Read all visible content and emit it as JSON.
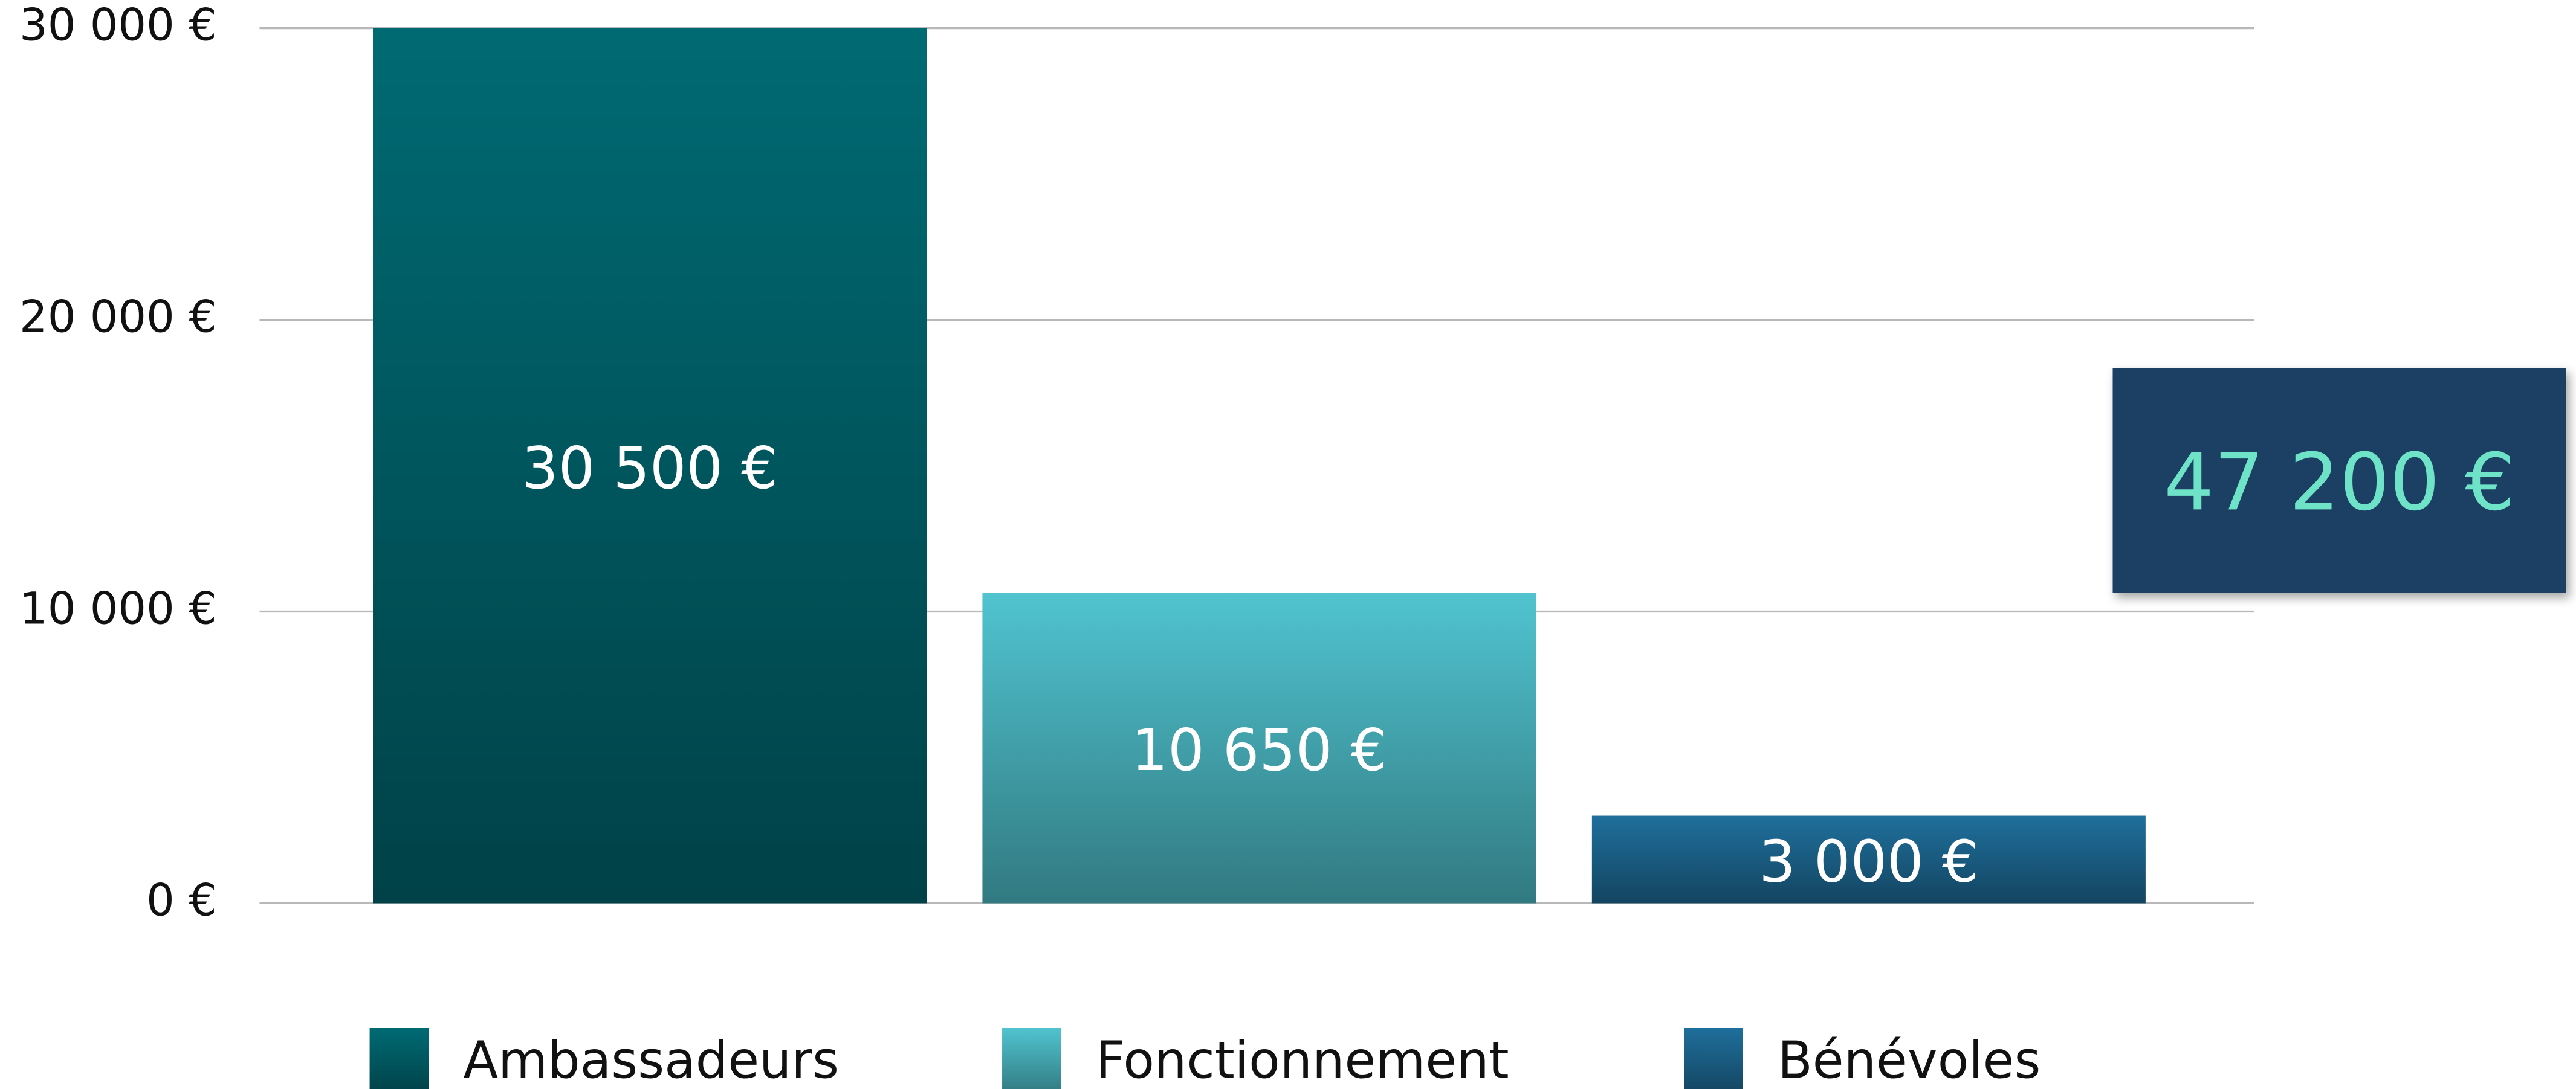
{
  "chart_data": {
    "type": "bar",
    "categories": [
      "Ambassadeurs",
      "Fonctionnement",
      "Bénévoles"
    ],
    "values": [
      30500,
      10650,
      3000
    ],
    "value_labels": [
      "30 500 €",
      "10 650 €",
      "3 000 €"
    ],
    "colors": [
      "#006a73",
      "#50c4d0",
      "#1f6f9c"
    ],
    "ylim": [
      0,
      30000
    ],
    "yticks": [
      {
        "value": 0,
        "label": "0 €"
      },
      {
        "value": 10000,
        "label": "10 000 €"
      },
      {
        "value": 20000,
        "label": "20 000 €"
      },
      {
        "value": 30000,
        "label": "30 000 €"
      }
    ],
    "grid": true,
    "annotation": "47 200 €"
  }
}
